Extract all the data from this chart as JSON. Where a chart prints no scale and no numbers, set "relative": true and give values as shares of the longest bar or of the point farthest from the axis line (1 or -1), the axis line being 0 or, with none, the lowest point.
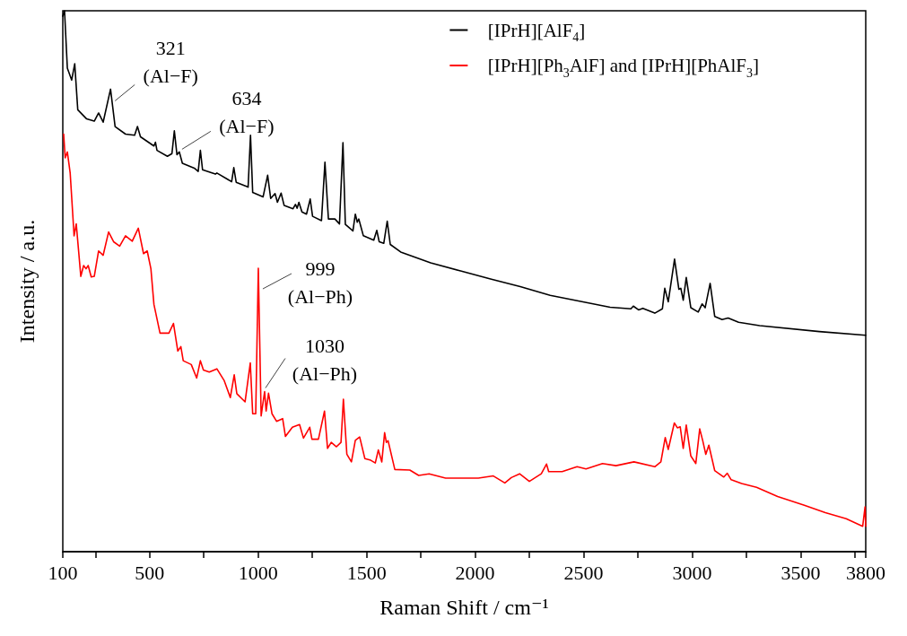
{
  "chart_data": {
    "type": "line",
    "relative": true,
    "xlabel": "Raman Shift / cm⁻¹",
    "ylabel": "Intensity / a.u.",
    "xlim": [
      100,
      3800
    ],
    "xticks": [
      100,
      {
        "value": 250,
        "label": null
      },
      500,
      {
        "value": 750,
        "label": null
      },
      1000,
      {
        "value": 1250,
        "label": null
      },
      1500,
      {
        "value": 1750,
        "label": null
      },
      2000,
      {
        "value": 2250,
        "label": null
      },
      2500,
      {
        "value": 2750,
        "label": null
      },
      3000,
      {
        "value": 3250,
        "label": null
      },
      3500,
      {
        "value": 3750,
        "label": null
      },
      3800
    ],
    "grid": false,
    "legend": "top right",
    "marker": "none",
    "line_style": "solid",
    "tick_labels": "x",
    "annotations": [
      {
        "text": "321\n(Al−F)",
        "x": 320,
        "y": 0.855
      },
      {
        "text": "634\n(Al−F)",
        "x": 637,
        "y": 0.739
      },
      {
        "text": "999\n(Al−Ph)",
        "x": 1001,
        "y": 0.524
      },
      {
        "text": "1030\n(Al−Ph)",
        "x": 1030,
        "y": 0.296
      }
    ],
    "series": [
      {
        "name": "[IPrH][AlF$_{4}$]",
        "color": "#000000",
        "x": [
          100,
          108,
          121,
          141,
          155,
          169,
          210,
          245,
          265,
          286,
          320,
          341,
          389,
          431,
          444,
          458,
          520,
          527,
          534,
          582,
          603,
          614,
          626,
          637,
          651,
          706,
          724,
          734,
          744,
          803,
          810,
          878,
          888,
          899,
          954,
          965,
          975,
          1023,
          1044,
          1058,
          1078,
          1089,
          1106,
          1120,
          1161,
          1172,
          1180,
          1188,
          1202,
          1223,
          1240,
          1251,
          1292,
          1308,
          1324,
          1354,
          1375,
          1391,
          1402,
          1437,
          1448,
          1457,
          1464,
          1485,
          1533,
          1547,
          1558,
          1579,
          1595,
          1609,
          1657,
          1795,
          1933,
          2071,
          2208,
          2346,
          2622,
          2718,
          2729,
          2753,
          2773,
          2828,
          2863,
          2874,
          2890,
          2919,
          2939,
          2948,
          2959,
          2973,
          2994,
          3028,
          3046,
          3060,
          3083,
          3104,
          3138,
          3166,
          3214,
          3311,
          3586,
          3800
        ],
        "values": [
          0.99,
          1.0,
          0.894,
          0.872,
          0.902,
          0.817,
          0.8,
          0.796,
          0.811,
          0.794,
          0.855,
          0.786,
          0.772,
          0.77,
          0.786,
          0.767,
          0.75,
          0.757,
          0.742,
          0.731,
          0.736,
          0.778,
          0.734,
          0.739,
          0.718,
          0.709,
          0.703,
          0.742,
          0.706,
          0.698,
          0.7,
          0.684,
          0.71,
          0.683,
          0.674,
          0.77,
          0.664,
          0.656,
          0.696,
          0.653,
          0.662,
          0.646,
          0.663,
          0.64,
          0.634,
          0.642,
          0.635,
          0.646,
          0.628,
          0.624,
          0.652,
          0.62,
          0.612,
          0.72,
          0.615,
          0.615,
          0.606,
          0.756,
          0.605,
          0.593,
          0.624,
          0.609,
          0.615,
          0.584,
          0.576,
          0.594,
          0.573,
          0.57,
          0.611,
          0.568,
          0.554,
          0.534,
          0.519,
          0.504,
          0.49,
          0.474,
          0.452,
          0.449,
          0.454,
          0.447,
          0.45,
          0.441,
          0.449,
          0.487,
          0.462,
          0.541,
          0.485,
          0.487,
          0.465,
          0.507,
          0.451,
          0.443,
          0.458,
          0.451,
          0.496,
          0.435,
          0.429,
          0.432,
          0.424,
          0.418,
          0.407,
          0.4
        ]
      },
      {
        "name": "[IPrH][Ph$_{3}$AlF] and [IPrH][PhAlF$_{3}$]",
        "color": "#ff0000",
        "x": [
          104,
          111,
          121,
          134,
          152,
          162,
          183,
          196,
          207,
          217,
          231,
          245,
          265,
          286,
          311,
          334,
          362,
          389,
          420,
          448,
          472,
          489,
          506,
          520,
          548,
          589,
          610,
          630,
          644,
          655,
          692,
          717,
          734,
          748,
          775,
          810,
          844,
          872,
          890,
          902,
          940,
          964,
          975,
          989,
          1001,
          1014,
          1030,
          1037,
          1048,
          1064,
          1085,
          1113,
          1126,
          1158,
          1191,
          1209,
          1238,
          1248,
          1278,
          1306,
          1320,
          1337,
          1361,
          1382,
          1393,
          1409,
          1430,
          1448,
          1468,
          1492,
          1519,
          1540,
          1554,
          1570,
          1583,
          1591,
          1599,
          1630,
          1699,
          1740,
          1788,
          1864,
          1933,
          2015,
          2084,
          2137,
          2167,
          2205,
          2250,
          2305,
          2329,
          2339,
          2401,
          2470,
          2511,
          2587,
          2649,
          2732,
          2828,
          2856,
          2876,
          2890,
          2918,
          2932,
          2945,
          2959,
          2973,
          2994,
          3017,
          3035,
          3049,
          3063,
          3077,
          3104,
          3146,
          3162,
          3180,
          3228,
          3297,
          3394,
          3517,
          3614,
          3710,
          3786,
          3797,
          3800
        ],
        "values": [
          0.772,
          0.728,
          0.739,
          0.7,
          0.584,
          0.606,
          0.509,
          0.529,
          0.523,
          0.529,
          0.508,
          0.509,
          0.556,
          0.548,
          0.591,
          0.573,
          0.565,
          0.584,
          0.574,
          0.598,
          0.551,
          0.556,
          0.523,
          0.457,
          0.404,
          0.404,
          0.422,
          0.371,
          0.379,
          0.353,
          0.346,
          0.321,
          0.353,
          0.336,
          0.332,
          0.338,
          0.316,
          0.285,
          0.327,
          0.292,
          0.277,
          0.349,
          0.255,
          0.255,
          0.524,
          0.251,
          0.296,
          0.26,
          0.293,
          0.255,
          0.241,
          0.246,
          0.213,
          0.23,
          0.235,
          0.21,
          0.23,
          0.208,
          0.208,
          0.26,
          0.191,
          0.202,
          0.194,
          0.202,
          0.282,
          0.18,
          0.166,
          0.206,
          0.212,
          0.172,
          0.169,
          0.164,
          0.188,
          0.166,
          0.22,
          0.202,
          0.205,
          0.152,
          0.151,
          0.141,
          0.144,
          0.136,
          0.136,
          0.136,
          0.14,
          0.127,
          0.137,
          0.144,
          0.13,
          0.144,
          0.162,
          0.148,
          0.148,
          0.157,
          0.153,
          0.163,
          0.159,
          0.166,
          0.157,
          0.166,
          0.211,
          0.189,
          0.238,
          0.229,
          0.231,
          0.191,
          0.234,
          0.177,
          0.163,
          0.227,
          0.205,
          0.18,
          0.197,
          0.15,
          0.138,
          0.145,
          0.133,
          0.126,
          0.119,
          0.102,
          0.086,
          0.072,
          0.061,
          0.047,
          0.083,
          0.047
        ]
      }
    ]
  }
}
